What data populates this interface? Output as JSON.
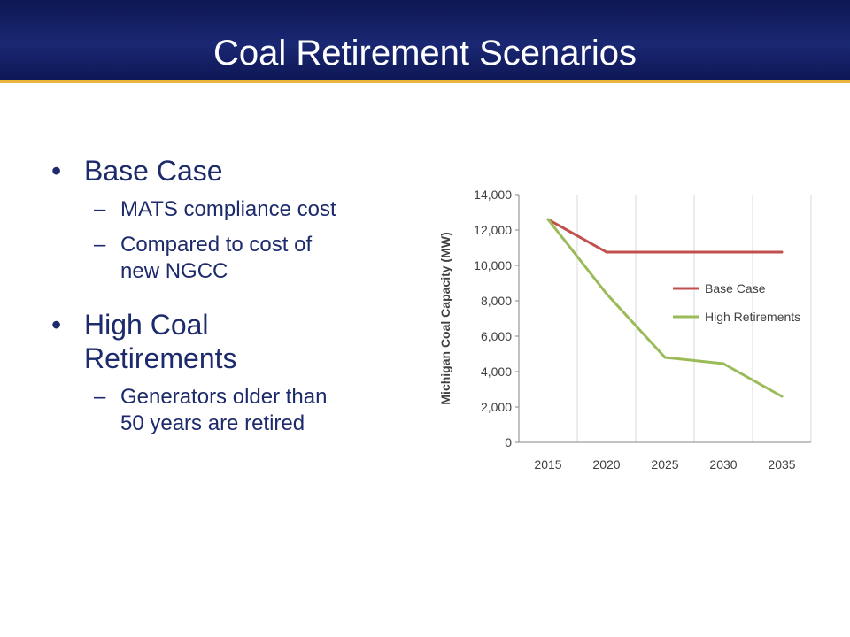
{
  "slide": {
    "title": "Coal Retirement Scenarios"
  },
  "bullets": {
    "b1": {
      "label": "Base Case",
      "sub": [
        "MATS compliance cost",
        "Compared to cost of",
        "new NGCC"
      ]
    },
    "b2": {
      "line1": "High Coal",
      "line2": "Retirements",
      "sub": [
        "Generators older than",
        "50 years are retired"
      ]
    },
    "glyphs": {
      "bullet": "•",
      "dash": "–"
    }
  },
  "chart_data": {
    "type": "line",
    "x": [
      2015,
      2020,
      2025,
      2030,
      2035
    ],
    "x_tick_labels": [
      "2015",
      "2020",
      "2025",
      "2030",
      "2035"
    ],
    "y_tick_labels": [
      "0",
      "2,000",
      "4,000",
      "6,000",
      "8,000",
      "10,000",
      "12,000",
      "14,000"
    ],
    "ylim": [
      0,
      14000
    ],
    "ylabel": "Michigan Coal Capacity (MW)",
    "xlabel": "",
    "grid": "vertical",
    "legend": "right",
    "series": [
      {
        "name": "Base Case",
        "color": "#c0504d",
        "values": [
          12600,
          10750,
          10750,
          10750,
          10750
        ]
      },
      {
        "name": "High Retirements",
        "color": "#9bbb59",
        "values": [
          12600,
          8400,
          4800,
          4450,
          2600
        ]
      }
    ]
  }
}
